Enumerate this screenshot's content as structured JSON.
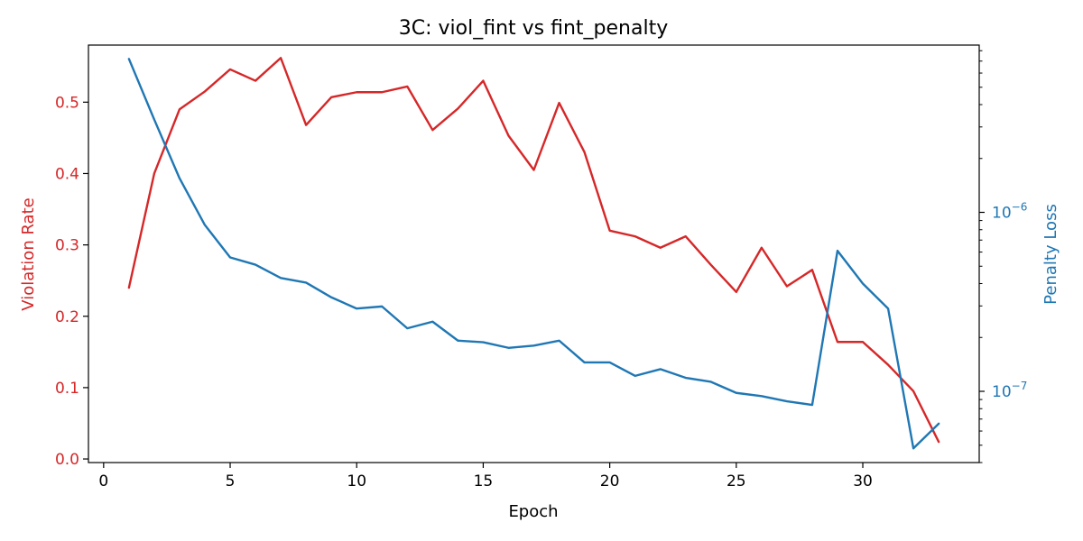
{
  "chart_data": {
    "type": "line",
    "title": "3C: viol_fint vs fint_penalty",
    "xlabel": "Epoch",
    "ylabel_left": "Violation Rate",
    "ylabel_right": "Penalty Loss",
    "xlim": [
      -0.6,
      34.6
    ],
    "ylim_left": [
      -0.005,
      0.58
    ],
    "ylim_right": [
      4e-08,
      8.6e-06
    ],
    "right_scale": "log",
    "x_ticks": [
      0,
      5,
      10,
      15,
      20,
      25,
      30
    ],
    "y_ticks_left": [
      0.0,
      0.1,
      0.2,
      0.3,
      0.4,
      0.5
    ],
    "y_ticks_right": [
      {
        "value": 1e-07,
        "label": "10",
        "exp": "−7"
      },
      {
        "value": 1e-06,
        "label": "10",
        "exp": "−6"
      }
    ],
    "grid": false,
    "colors": {
      "left_series": "#d62728",
      "right_series": "#1f77b4",
      "axis": "#000000"
    },
    "x": [
      1,
      2,
      3,
      4,
      5,
      6,
      7,
      8,
      9,
      10,
      11,
      12,
      13,
      14,
      15,
      16,
      17,
      18,
      19,
      20,
      21,
      22,
      23,
      24,
      25,
      26,
      27,
      28,
      29,
      30,
      31,
      32,
      33
    ],
    "series": [
      {
        "axis": "left",
        "values": [
          0.24,
          0.4,
          0.49,
          0.515,
          0.546,
          0.53,
          0.562,
          0.468,
          0.507,
          0.514,
          0.514,
          0.522,
          0.461,
          0.491,
          0.53,
          0.453,
          0.405,
          0.499,
          0.43,
          0.32,
          0.312,
          0.296,
          0.312,
          0.272,
          0.234,
          0.296,
          0.242,
          0.265,
          0.164,
          0.164,
          0.132,
          0.095,
          0.024
        ]
      },
      {
        "axis": "right",
        "values": [
          7.2e-06,
          3.3e-06,
          1.55e-06,
          8.5e-07,
          5.6e-07,
          5.1e-07,
          4.3e-07,
          4.05e-07,
          3.35e-07,
          2.9e-07,
          2.98e-07,
          2.25e-07,
          2.45e-07,
          1.92e-07,
          1.88e-07,
          1.75e-07,
          1.8e-07,
          1.92e-07,
          1.45e-07,
          1.45e-07,
          1.22e-07,
          1.33e-07,
          1.19e-07,
          1.13e-07,
          9.8e-08,
          9.4e-08,
          8.8e-08,
          8.4e-08,
          6.1e-07,
          4e-07,
          2.9e-07,
          4.8e-08,
          6.6e-08
        ]
      }
    ]
  }
}
